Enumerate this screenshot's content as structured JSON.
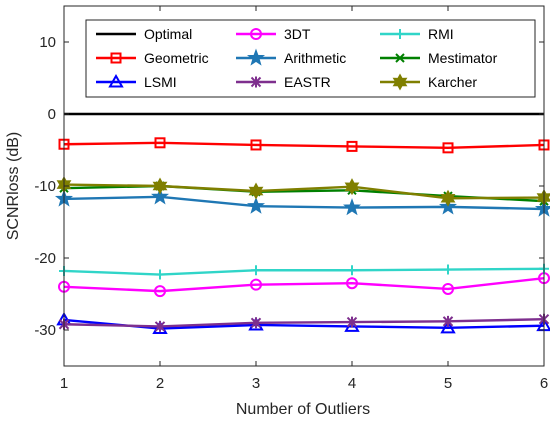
{
  "chart_data": {
    "type": "line",
    "title": "",
    "xlabel": "Number of Outliers",
    "ylabel": "SCNRloss (dB)",
    "x": [
      1,
      2,
      3,
      4,
      5,
      6
    ],
    "xlim": [
      1,
      6
    ],
    "ylim": [
      -35,
      15
    ],
    "xticks": [
      "1",
      "2",
      "3",
      "4",
      "5",
      "6"
    ],
    "yticks": [
      {
        "value": 10,
        "label": "10"
      },
      {
        "value": 0,
        "label": "0"
      },
      {
        "value": -10,
        "label": "-10"
      },
      {
        "value": -20,
        "label": "-20"
      },
      {
        "value": -30,
        "label": "-30"
      }
    ],
    "grid": false,
    "legend_position": "top",
    "series": [
      {
        "name": "Optimal",
        "color": "#000000",
        "marker": "none",
        "values": [
          0,
          0,
          0,
          0,
          0,
          0
        ]
      },
      {
        "name": "Geometric",
        "color": "#ff0000",
        "marker": "square",
        "values": [
          -4.2,
          -4.0,
          -4.3,
          -4.5,
          -4.7,
          -4.3
        ]
      },
      {
        "name": "LSMI",
        "color": "#0000ff",
        "marker": "triangle",
        "values": [
          -28.6,
          -29.8,
          -29.3,
          -29.5,
          -29.7,
          -29.4
        ]
      },
      {
        "name": "3DT",
        "color": "#ff00ff",
        "marker": "circle",
        "values": [
          -24.0,
          -24.6,
          -23.7,
          -23.5,
          -24.3,
          -22.8
        ]
      },
      {
        "name": "Arithmetic",
        "color": "#1f77b4",
        "marker": "star",
        "values": [
          -11.8,
          -11.5,
          -12.8,
          -13.0,
          -12.9,
          -13.2
        ]
      },
      {
        "name": "EASTR",
        "color": "#7e2f8e",
        "marker": "asterisk",
        "values": [
          -29.2,
          -29.5,
          -29.0,
          -28.9,
          -28.8,
          -28.5
        ]
      },
      {
        "name": "RMI",
        "color": "#30d5c8",
        "marker": "plus",
        "values": [
          -21.8,
          -22.3,
          -21.7,
          -21.7,
          -21.6,
          -21.5
        ]
      },
      {
        "name": "Mestimator",
        "color": "#008000",
        "marker": "x",
        "values": [
          -10.3,
          -10.0,
          -10.8,
          -10.6,
          -11.4,
          -12.1
        ]
      },
      {
        "name": "Karcher",
        "color": "#7f7f00",
        "marker": "hexagram",
        "values": [
          -9.8,
          -10.0,
          -10.7,
          -10.1,
          -11.7,
          -11.6
        ]
      }
    ]
  }
}
